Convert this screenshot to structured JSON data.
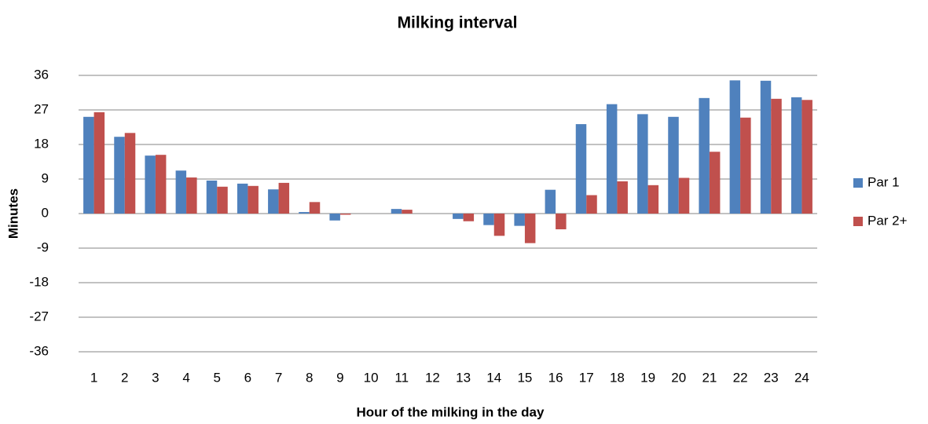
{
  "chart_data": {
    "type": "bar",
    "title": "Milking interval",
    "x_label": "Hour of the milking in the day",
    "y_label": "Minutes",
    "categories": [
      "1",
      "2",
      "3",
      "4",
      "5",
      "6",
      "7",
      "8",
      "9",
      "10",
      "11",
      "12",
      "13",
      "14",
      "15",
      "16",
      "17",
      "18",
      "19",
      "20",
      "21",
      "22",
      "23",
      "24"
    ],
    "series": [
      {
        "name": "Par 1",
        "color": "#4f81bd",
        "values": [
          25.2,
          20,
          15.1,
          11.2,
          8.6,
          7.8,
          6.3,
          0.4,
          -1.8,
          0,
          1.2,
          0,
          -1.4,
          -3,
          -3.2,
          6.2,
          23.3,
          28.5,
          25.9,
          25.2,
          30.1,
          34.7,
          34.6,
          30.3
        ]
      },
      {
        "name": "Par 2+",
        "color": "#c0504d",
        "values": [
          26.4,
          21,
          15.3,
          9.4,
          7,
          7.2,
          8,
          3,
          -0.3,
          0,
          1,
          0,
          -2,
          -5.8,
          -7.7,
          -4.1,
          4.8,
          8.4,
          7.4,
          9.3,
          16.1,
          25,
          29.9,
          29.6
        ]
      }
    ],
    "ylim": [
      -36,
      36
    ],
    "yticks": [
      -36,
      -27,
      -18,
      -9,
      0,
      9,
      18,
      27,
      36
    ],
    "grid": true,
    "legend": "right"
  }
}
